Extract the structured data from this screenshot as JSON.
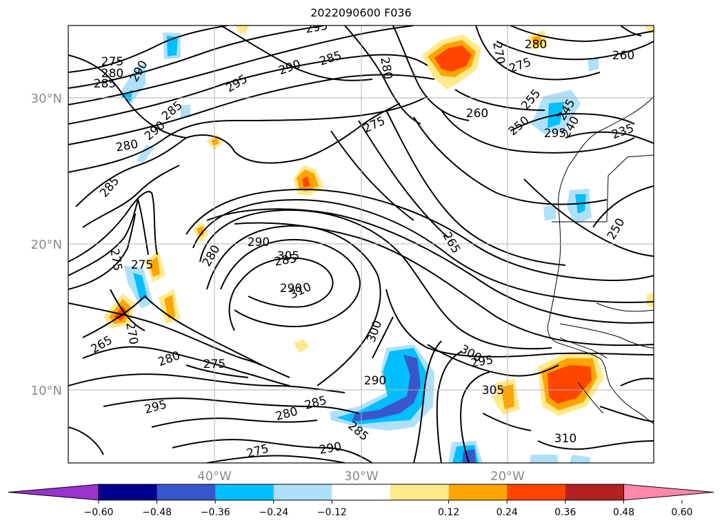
{
  "title": "2022090600 F036",
  "map": {
    "lat_labels": [
      "30°N",
      "20°N",
      "10°N"
    ],
    "lon_labels": [
      "40°W",
      "30°W",
      "20°W"
    ],
    "contour_labels": [
      {
        "text": "295"
      },
      {
        "text": "290"
      },
      {
        "text": "285"
      },
      {
        "text": "280"
      },
      {
        "text": "275"
      },
      {
        "text": "270"
      },
      {
        "text": "280"
      },
      {
        "text": "260"
      },
      {
        "text": "275"
      },
      {
        "text": "275"
      },
      {
        "text": "280"
      },
      {
        "text": "285"
      },
      {
        "text": "290"
      },
      {
        "text": "295"
      },
      {
        "text": "290"
      },
      {
        "text": "285"
      },
      {
        "text": "280"
      },
      {
        "text": "285"
      },
      {
        "text": "290"
      },
      {
        "text": "280"
      },
      {
        "text": "275"
      },
      {
        "text": "260"
      },
      {
        "text": "255"
      },
      {
        "text": "250"
      },
      {
        "text": "245"
      },
      {
        "text": "240"
      },
      {
        "text": "235"
      },
      {
        "text": "295"
      },
      {
        "text": "265"
      },
      {
        "text": "250"
      },
      {
        "text": "285"
      },
      {
        "text": "290"
      },
      {
        "text": "305"
      },
      {
        "text": "310"
      },
      {
        "text": "300"
      },
      {
        "text": "275"
      },
      {
        "text": "270"
      },
      {
        "text": "265"
      },
      {
        "text": "280"
      },
      {
        "text": "275"
      },
      {
        "text": "300"
      },
      {
        "text": "300"
      },
      {
        "text": "295"
      },
      {
        "text": "290"
      },
      {
        "text": "305"
      },
      {
        "text": "295"
      },
      {
        "text": "285"
      },
      {
        "text": "280"
      },
      {
        "text": "285"
      },
      {
        "text": "275"
      },
      {
        "text": "290"
      },
      {
        "text": "310"
      }
    ]
  },
  "colorbar": {
    "ticks": [
      "−0.60",
      "−0.48",
      "−0.36",
      "−0.24",
      "−0.12",
      "0.12",
      "0.24",
      "0.36",
      "0.48",
      "0.60"
    ],
    "colors": [
      "#9a33cc",
      "#00008f",
      "#3a56cc",
      "#00bfff",
      "#aee0fa",
      "#ffffff",
      "#ffe98a",
      "#ffa500",
      "#ff4500",
      "#b22222",
      "#ff88aa"
    ]
  }
}
